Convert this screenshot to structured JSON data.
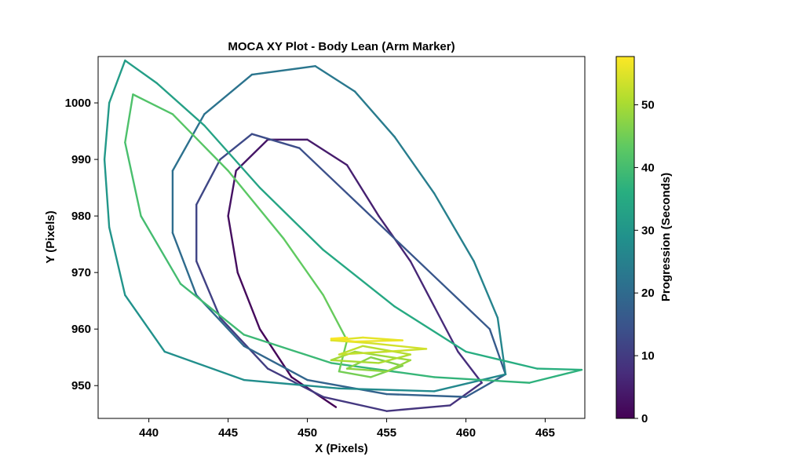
{
  "chart_data": {
    "type": "line",
    "title": "MOCA XY Plot - Body Lean (Arm Marker)",
    "xlabel": "X (Pixels)",
    "ylabel": "Y (Pixels)",
    "xlim": [
      436.8,
      467.5
    ],
    "ylim": [
      944.2,
      1008.2
    ],
    "xticks": [
      440,
      445,
      450,
      455,
      460,
      465
    ],
    "yticks": [
      950,
      960,
      970,
      980,
      990,
      1000
    ],
    "grid": false,
    "colorbar": {
      "label": "Progression (Seconds)",
      "range": [
        0,
        57.7
      ],
      "ticks": [
        0,
        10,
        20,
        30,
        40,
        50
      ],
      "colormap": "viridis"
    },
    "series": [
      {
        "name": "",
        "values": [
          {
            "t": 0.0,
            "x": 451.8,
            "y": 946.2
          },
          {
            "t": 0.6,
            "x": 449.0,
            "y": 951.5
          },
          {
            "t": 1.2,
            "x": 447.0,
            "y": 960.0
          },
          {
            "t": 1.8,
            "x": 445.6,
            "y": 970.0
          },
          {
            "t": 2.4,
            "x": 445.0,
            "y": 980.0
          },
          {
            "t": 3.0,
            "x": 445.5,
            "y": 988.0
          },
          {
            "t": 3.6,
            "x": 447.5,
            "y": 993.5
          },
          {
            "t": 4.2,
            "x": 450.0,
            "y": 993.5
          },
          {
            "t": 4.8,
            "x": 452.5,
            "y": 989.0
          },
          {
            "t": 5.4,
            "x": 454.5,
            "y": 980.0
          },
          {
            "t": 6.0,
            "x": 456.5,
            "y": 972.0
          },
          {
            "t": 6.6,
            "x": 458.0,
            "y": 964.0
          },
          {
            "t": 7.2,
            "x": 459.5,
            "y": 956.0
          },
          {
            "t": 7.8,
            "x": 461.0,
            "y": 950.5
          },
          {
            "t": 8.4,
            "x": 459.0,
            "y": 946.5
          },
          {
            "t": 9.0,
            "x": 455.0,
            "y": 945.5
          },
          {
            "t": 9.6,
            "x": 451.0,
            "y": 948.0
          },
          {
            "t": 10.2,
            "x": 447.5,
            "y": 953.0
          },
          {
            "t": 10.8,
            "x": 444.5,
            "y": 962.0
          },
          {
            "t": 11.4,
            "x": 443.0,
            "y": 972.0
          },
          {
            "t": 12.0,
            "x": 443.0,
            "y": 982.0
          },
          {
            "t": 12.6,
            "x": 444.5,
            "y": 990.0
          },
          {
            "t": 13.2,
            "x": 446.5,
            "y": 994.5
          },
          {
            "t": 13.8,
            "x": 449.5,
            "y": 992.0
          },
          {
            "t": 14.4,
            "x": 452.5,
            "y": 984.0
          },
          {
            "t": 15.0,
            "x": 455.5,
            "y": 976.0
          },
          {
            "t": 15.6,
            "x": 458.5,
            "y": 968.0
          },
          {
            "t": 16.2,
            "x": 461.5,
            "y": 960.0
          },
          {
            "t": 16.8,
            "x": 462.5,
            "y": 952.0
          },
          {
            "t": 17.4,
            "x": 460.0,
            "y": 948.0
          },
          {
            "t": 18.0,
            "x": 455.0,
            "y": 948.5
          },
          {
            "t": 18.6,
            "x": 450.0,
            "y": 951.0
          },
          {
            "t": 19.2,
            "x": 446.0,
            "y": 957.0
          },
          {
            "t": 19.8,
            "x": 443.0,
            "y": 966.0
          },
          {
            "t": 20.4,
            "x": 441.5,
            "y": 977.0
          },
          {
            "t": 21.0,
            "x": 441.5,
            "y": 988.0
          },
          {
            "t": 21.6,
            "x": 443.5,
            "y": 998.0
          },
          {
            "t": 22.2,
            "x": 446.5,
            "y": 1005.0
          },
          {
            "t": 22.8,
            "x": 450.5,
            "y": 1006.5
          },
          {
            "t": 23.4,
            "x": 453.0,
            "y": 1002.0
          },
          {
            "t": 24.0,
            "x": 455.5,
            "y": 994.0
          },
          {
            "t": 24.6,
            "x": 458.0,
            "y": 984.0
          },
          {
            "t": 25.2,
            "x": 460.5,
            "y": 972.0
          },
          {
            "t": 25.8,
            "x": 462.0,
            "y": 962.0
          },
          {
            "t": 26.4,
            "x": 462.5,
            "y": 952.0
          },
          {
            "t": 27.0,
            "x": 458.0,
            "y": 949.0
          },
          {
            "t": 27.6,
            "x": 452.0,
            "y": 949.5
          },
          {
            "t": 28.2,
            "x": 446.0,
            "y": 951.0
          },
          {
            "t": 28.8,
            "x": 441.0,
            "y": 956.0
          },
          {
            "t": 29.4,
            "x": 438.5,
            "y": 966.0
          },
          {
            "t": 30.0,
            "x": 437.5,
            "y": 978.0
          },
          {
            "t": 30.6,
            "x": 437.2,
            "y": 990.0
          },
          {
            "t": 31.2,
            "x": 437.5,
            "y": 1000.0
          },
          {
            "t": 31.8,
            "x": 438.5,
            "y": 1007.5
          },
          {
            "t": 32.4,
            "x": 440.5,
            "y": 1003.5
          },
          {
            "t": 33.0,
            "x": 443.5,
            "y": 996.0
          },
          {
            "t": 33.6,
            "x": 447.0,
            "y": 985.0
          },
          {
            "t": 34.2,
            "x": 451.0,
            "y": 974.0
          },
          {
            "t": 34.8,
            "x": 455.5,
            "y": 964.0
          },
          {
            "t": 35.4,
            "x": 460.0,
            "y": 956.0
          },
          {
            "t": 36.0,
            "x": 464.5,
            "y": 953.0
          },
          {
            "t": 36.6,
            "x": 467.3,
            "y": 952.8
          },
          {
            "t": 37.2,
            "x": 464.0,
            "y": 950.5
          },
          {
            "t": 37.8,
            "x": 458.0,
            "y": 951.5
          },
          {
            "t": 38.4,
            "x": 451.5,
            "y": 954.0
          },
          {
            "t": 39.0,
            "x": 446.0,
            "y": 959.0
          },
          {
            "t": 39.6,
            "x": 442.0,
            "y": 968.0
          },
          {
            "t": 40.2,
            "x": 439.5,
            "y": 980.0
          },
          {
            "t": 40.8,
            "x": 438.5,
            "y": 993.0
          },
          {
            "t": 41.4,
            "x": 439.0,
            "y": 1001.5
          },
          {
            "t": 42.0,
            "x": 441.5,
            "y": 998.0
          },
          {
            "t": 42.6,
            "x": 445.0,
            "y": 988.0
          },
          {
            "t": 43.2,
            "x": 448.5,
            "y": 976.0
          },
          {
            "t": 43.8,
            "x": 451.0,
            "y": 966.0
          },
          {
            "t": 44.4,
            "x": 452.5,
            "y": 958.0
          },
          {
            "t": 45.0,
            "x": 452.0,
            "y": 952.5
          },
          {
            "t": 45.6,
            "x": 454.0,
            "y": 951.5
          },
          {
            "t": 46.2,
            "x": 456.0,
            "y": 953.5
          },
          {
            "t": 46.8,
            "x": 454.0,
            "y": 955.0
          },
          {
            "t": 47.4,
            "x": 452.5,
            "y": 953.0
          },
          {
            "t": 48.0,
            "x": 455.0,
            "y": 952.5
          },
          {
            "t": 48.6,
            "x": 456.5,
            "y": 954.5
          },
          {
            "t": 49.2,
            "x": 453.0,
            "y": 956.0
          },
          {
            "t": 49.8,
            "x": 451.5,
            "y": 954.5
          },
          {
            "t": 50.4,
            "x": 454.5,
            "y": 954.0
          },
          {
            "t": 51.0,
            "x": 456.5,
            "y": 955.5
          },
          {
            "t": 51.6,
            "x": 453.5,
            "y": 957.0
          },
          {
            "t": 52.2,
            "x": 452.0,
            "y": 955.5
          },
          {
            "t": 52.8,
            "x": 455.0,
            "y": 956.0
          },
          {
            "t": 53.4,
            "x": 457.5,
            "y": 956.5
          },
          {
            "t": 54.0,
            "x": 454.0,
            "y": 957.5
          },
          {
            "t": 54.6,
            "x": 451.5,
            "y": 958.0
          },
          {
            "t": 55.2,
            "x": 453.5,
            "y": 958.5
          },
          {
            "t": 55.8,
            "x": 456.0,
            "y": 958.0
          },
          {
            "t": 56.4,
            "x": 453.0,
            "y": 957.8
          },
          {
            "t": 57.0,
            "x": 451.5,
            "y": 958.3
          },
          {
            "t": 57.7,
            "x": 452.5,
            "y": 958.5
          }
        ]
      }
    ]
  }
}
